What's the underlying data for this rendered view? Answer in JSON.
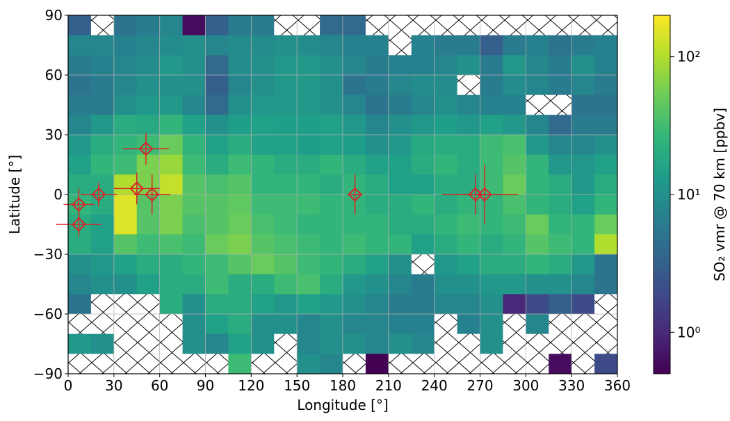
{
  "chart_data": {
    "type": "heatmap",
    "xlabel": "Longitude [°]",
    "ylabel": "Latitude [°]",
    "colorbar_label": "SO₂ vmr @ 70 km [ppbv]",
    "colormap": "viridis",
    "color_scale": "log",
    "clim": [
      0.5,
      200
    ],
    "cticks": [
      {
        "value": 1,
        "label": "10⁰"
      },
      {
        "value": 10,
        "label": "10¹"
      },
      {
        "value": 100,
        "label": "10²"
      }
    ],
    "xlim": [
      0,
      360
    ],
    "ylim": [
      -90,
      90
    ],
    "xticks": [
      0,
      30,
      60,
      90,
      120,
      150,
      180,
      210,
      240,
      270,
      300,
      330,
      360
    ],
    "yticks": [
      {
        "value": -90,
        "label": "−90"
      },
      {
        "value": -60,
        "label": "−60"
      },
      {
        "value": -30,
        "label": "−30"
      },
      0,
      30,
      60,
      90
    ],
    "grid": true,
    "xbins": [
      0,
      15,
      30,
      45,
      60,
      75,
      90,
      105,
      120,
      135,
      150,
      165,
      180,
      195,
      210,
      225,
      240,
      255,
      270,
      285,
      300,
      315,
      330,
      345,
      360
    ],
    "ybins": [
      90,
      80,
      70,
      60,
      50,
      40,
      30,
      20,
      10,
      0,
      -10,
      -20,
      -30,
      -40,
      -50,
      -60,
      -70,
      -80,
      -90
    ],
    "z": [
      [
        3,
        null,
        5,
        6,
        8,
        0.6,
        3,
        6,
        6,
        null,
        null,
        4,
        4,
        null,
        null,
        null,
        null,
        null,
        null,
        null,
        null,
        null,
        null,
        null
      ],
      [
        8,
        8,
        7,
        8,
        9,
        10,
        8,
        9,
        9,
        10,
        9,
        8,
        7,
        7,
        null,
        7,
        6,
        6,
        3,
        6,
        7,
        5,
        6,
        7
      ],
      [
        6,
        7,
        8,
        9,
        12,
        10,
        4,
        9,
        10,
        12,
        12,
        10,
        8,
        6,
        7,
        7,
        8,
        10,
        6,
        12,
        8,
        6,
        10,
        7
      ],
      [
        5,
        6,
        8,
        10,
        10,
        10,
        3,
        8,
        10,
        12,
        12,
        10,
        5,
        6,
        8,
        9,
        9,
        null,
        6,
        9,
        8,
        6,
        8,
        6
      ],
      [
        6,
        6,
        10,
        12,
        12,
        8,
        4,
        10,
        12,
        12,
        12,
        10,
        8,
        5,
        6,
        8,
        10,
        8,
        7,
        7,
        null,
        null,
        5,
        5
      ],
      [
        8,
        12,
        20,
        18,
        25,
        15,
        10,
        14,
        15,
        14,
        14,
        15,
        12,
        8,
        10,
        12,
        14,
        12,
        15,
        12,
        8,
        4,
        6,
        6
      ],
      [
        12,
        20,
        25,
        30,
        50,
        25,
        15,
        20,
        15,
        15,
        14,
        15,
        14,
        10,
        12,
        18,
        20,
        20,
        30,
        35,
        12,
        8,
        8,
        10
      ],
      [
        15,
        25,
        30,
        60,
        80,
        30,
        20,
        30,
        25,
        20,
        20,
        25,
        20,
        15,
        15,
        20,
        25,
        20,
        30,
        40,
        25,
        12,
        12,
        15
      ],
      [
        20,
        20,
        100,
        60,
        120,
        40,
        35,
        40,
        25,
        25,
        25,
        20,
        25,
        20,
        15,
        15,
        20,
        20,
        30,
        50,
        25,
        20,
        12,
        20
      ],
      [
        25,
        20,
        150,
        40,
        60,
        40,
        40,
        45,
        30,
        30,
        30,
        25,
        25,
        20,
        20,
        25,
        20,
        25,
        25,
        35,
        25,
        20,
        15,
        25
      ],
      [
        20,
        15,
        150,
        40,
        60,
        35,
        40,
        50,
        35,
        30,
        25,
        25,
        25,
        25,
        20,
        20,
        25,
        30,
        25,
        30,
        50,
        25,
        25,
        50
      ],
      [
        20,
        15,
        40,
        30,
        35,
        30,
        50,
        60,
        40,
        35,
        30,
        25,
        30,
        25,
        25,
        15,
        20,
        25,
        20,
        25,
        40,
        30,
        25,
        100
      ],
      [
        10,
        12,
        15,
        20,
        20,
        25,
        30,
        40,
        50,
        40,
        30,
        25,
        20,
        15,
        10,
        null,
        12,
        15,
        20,
        20,
        25,
        20,
        12,
        5
      ],
      [
        8,
        10,
        10,
        15,
        20,
        20,
        30,
        20,
        20,
        30,
        35,
        20,
        12,
        10,
        8,
        6,
        10,
        10,
        12,
        12,
        10,
        10,
        8,
        5
      ],
      [
        5,
        null,
        null,
        null,
        20,
        10,
        20,
        20,
        15,
        12,
        15,
        12,
        10,
        8,
        6,
        6,
        8,
        8,
        10,
        1,
        2,
        3,
        2,
        null
      ],
      [
        null,
        null,
        null,
        null,
        null,
        10,
        15,
        20,
        10,
        10,
        8,
        10,
        8,
        8,
        7,
        7,
        null,
        7,
        10,
        null,
        8,
        null,
        null,
        null
      ],
      [
        12,
        10,
        null,
        null,
        null,
        10,
        8,
        15,
        10,
        null,
        8,
        10,
        10,
        8,
        10,
        8,
        null,
        null,
        10,
        null,
        null,
        null,
        null,
        null
      ],
      [
        null,
        null,
        null,
        null,
        null,
        null,
        null,
        30,
        null,
        null,
        10,
        8,
        null,
        0.5,
        null,
        null,
        null,
        null,
        null,
        null,
        null,
        0.6,
        null,
        2
      ]
    ],
    "points": {
      "color": "#d62728",
      "x": [
        7,
        7,
        20,
        45,
        51,
        55,
        188,
        267,
        273
      ],
      "y": [
        -5,
        -15,
        0,
        3,
        23,
        0,
        0,
        0,
        0
      ],
      "xerr": [
        10,
        15,
        12,
        15,
        15,
        12,
        5,
        22,
        22
      ],
      "yerr": [
        8,
        6,
        6,
        8,
        8,
        10,
        10,
        10,
        15
      ]
    }
  }
}
